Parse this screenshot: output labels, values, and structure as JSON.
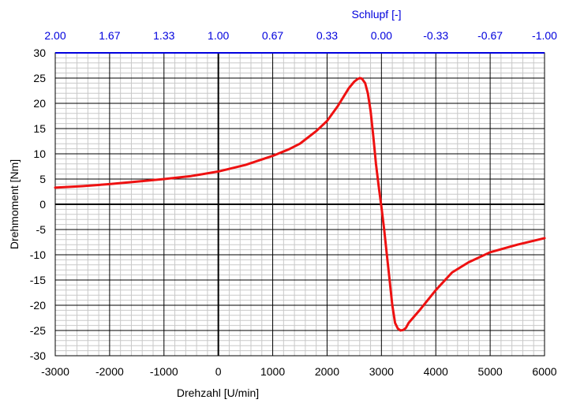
{
  "chart_data": {
    "type": "line",
    "title": "",
    "xlabel": "Drehzahl [U/min]",
    "ylabel": "Drehmoment [Nm]",
    "top_xlabel": "Schlupf [-]",
    "xlim": [
      -3000,
      6000
    ],
    "ylim": [
      -30,
      30
    ],
    "x_ticks": [
      "-3000",
      "-2000",
      "-1000",
      "0",
      "1000",
      "2000",
      "3000",
      "4000",
      "5000",
      "6000"
    ],
    "y_ticks": [
      "30",
      "25",
      "20",
      "15",
      "10",
      "5",
      "0",
      "-5",
      "-10",
      "-15",
      "-20",
      "-25",
      "-30"
    ],
    "top_ticks": [
      "2.00",
      "1.67",
      "1.33",
      "1.00",
      "0.67",
      "0.33",
      "0.00",
      "-0.33",
      "-0.67",
      "-1.00"
    ],
    "grid": true,
    "legend": "none",
    "series": [
      {
        "name": "Drehmoment",
        "color": "#ee1111",
        "x": [
          -3000,
          -2500,
          -2000,
          -1500,
          -1000,
          -500,
          0,
          500,
          1000,
          1300,
          1500,
          1800,
          2000,
          2200,
          2400,
          2500,
          2560,
          2600,
          2640,
          2700,
          2750,
          2800,
          2850,
          2900,
          2950,
          3000,
          3050,
          3100,
          3150,
          3200,
          3250,
          3300,
          3350,
          3400,
          3450,
          3500,
          3700,
          4000,
          4300,
          4600,
          5000,
          5500,
          6000
        ],
        "values": [
          3.3,
          3.6,
          4.0,
          4.5,
          5.0,
          5.6,
          6.5,
          7.8,
          9.6,
          10.9,
          12.0,
          14.5,
          16.5,
          19.5,
          23.0,
          24.3,
          24.8,
          25.0,
          24.9,
          24.0,
          22.0,
          18.5,
          13.5,
          8.0,
          3.5,
          -0.5,
          -5.0,
          -10.0,
          -15.0,
          -20.0,
          -23.5,
          -24.6,
          -25.0,
          -24.9,
          -24.5,
          -23.5,
          -21.0,
          -17.0,
          -13.5,
          -11.5,
          -9.5,
          -8.0,
          -6.7
        ]
      }
    ]
  }
}
